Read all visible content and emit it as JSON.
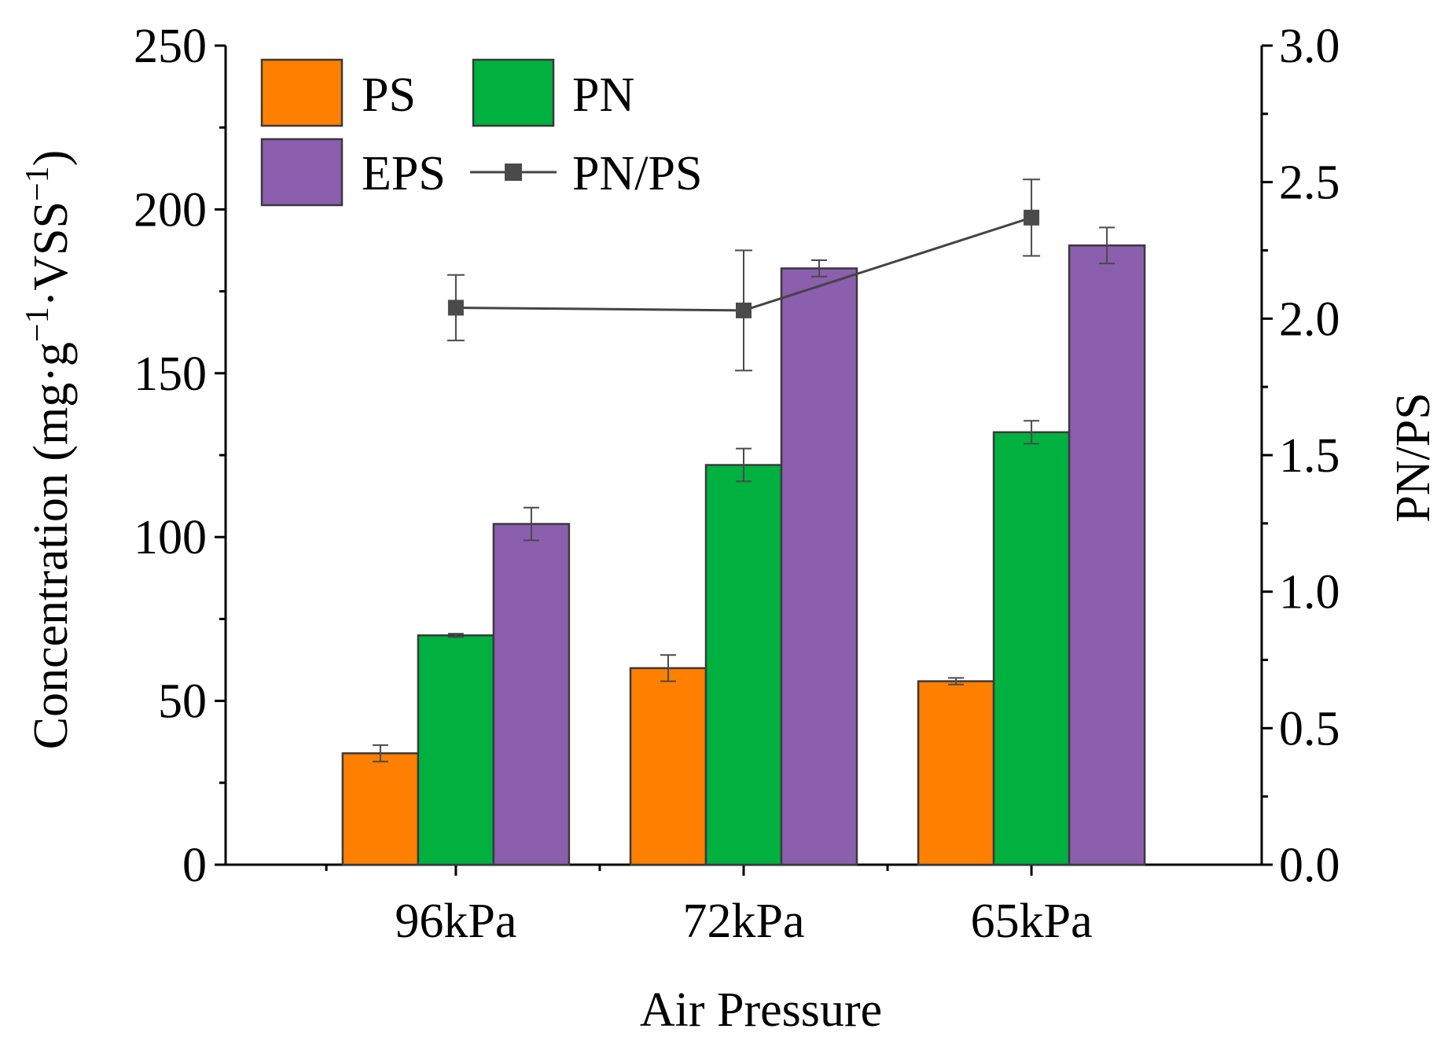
{
  "chart_data": {
    "type": "bar",
    "title": "",
    "xlabel": "Air Pressure",
    "ylabel_parts": {
      "prefix": "Concentration (mg·g",
      "sup1": "−1",
      "middle": "·VSS",
      "sup2": "−1",
      "suffix": ")"
    },
    "y2label": "PN/PS",
    "categories": [
      "96kPa",
      "72kPa",
      "65kPa"
    ],
    "ylim": [
      0,
      250
    ],
    "y_ticks": [
      "0",
      "50",
      "100",
      "150",
      "200",
      "250"
    ],
    "y_tick_values": [
      0,
      50,
      100,
      150,
      200,
      250
    ],
    "y2lim": [
      0,
      3.0
    ],
    "y2_ticks": [
      "0.0",
      "0.5",
      "1.0",
      "1.5",
      "2.0",
      "2.5",
      "3.0"
    ],
    "y2_tick_values": [
      0,
      0.5,
      1.0,
      1.5,
      2.0,
      2.5,
      3.0
    ],
    "series": [
      {
        "name": "PS",
        "color": "#FF8000",
        "values": [
          34,
          60,
          56
        ],
        "errors": [
          2.5,
          4,
          1
        ]
      },
      {
        "name": "PN",
        "color": "#00B140",
        "values": [
          70,
          122,
          132
        ],
        "errors": [
          0.5,
          5,
          3.5
        ]
      },
      {
        "name": "EPS",
        "color": "#8B5EAE",
        "values": [
          104,
          182,
          189
        ],
        "errors": [
          5,
          2.5,
          5.5
        ]
      }
    ],
    "line_series": {
      "name": "PN/PS",
      "axis": "right",
      "color": "#444444",
      "values": [
        2.04,
        2.03,
        2.37
      ],
      "errors": [
        0.12,
        0.22,
        0.14
      ]
    },
    "legend_position": "top-left"
  }
}
